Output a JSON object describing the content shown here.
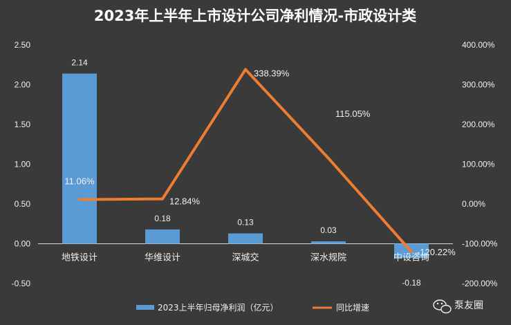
{
  "chart_data": {
    "type": "bar",
    "title": "2023年上半年上市设计公司净利情况-市政设计类",
    "categories": [
      "地铁设计",
      "华维设计",
      "深城交",
      "深水规院",
      "中设咨询"
    ],
    "series": [
      {
        "name": "2023上半年归母净利润（亿元）",
        "type": "bar",
        "axis": "left",
        "values": [
          2.14,
          0.18,
          0.13,
          0.03,
          -0.18
        ],
        "labels": [
          "2.14",
          "0.18",
          "0.13",
          "0.03",
          "-0.18"
        ],
        "color": "#5b9bd5"
      },
      {
        "name": "同比增速",
        "type": "line",
        "axis": "right",
        "values": [
          11.06,
          12.84,
          338.39,
          115.05,
          -120.22
        ],
        "labels": [
          "11.06%",
          "12.84%",
          "338.39%",
          "115.05%",
          "-120.22%"
        ],
        "color": "#ed7d31"
      }
    ],
    "ylim": [
      -0.5,
      2.5
    ],
    "y_ticks": [
      "2.50",
      "2.00",
      "1.50",
      "1.00",
      "0.50",
      "0.00",
      "-0.50"
    ],
    "y2lim": [
      -200,
      400
    ],
    "y2_ticks": [
      "400.00%",
      "300.00%",
      "200.00%",
      "100.00%",
      "0.00%",
      "-100.00%",
      "-200.00%"
    ],
    "grid": false,
    "legend": "bottom"
  },
  "watermark": "泵友圈",
  "colors": {
    "background": "#3a3a3a",
    "bar": "#5b9bd5",
    "line": "#ed7d31",
    "text": "#f0f0f0"
  }
}
